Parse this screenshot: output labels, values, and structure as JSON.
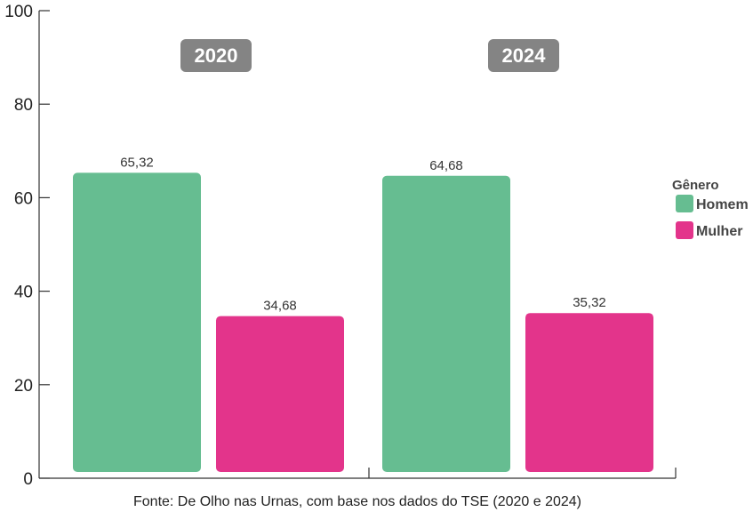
{
  "chart_data": {
    "type": "bar",
    "categories": [
      "2020",
      "2024"
    ],
    "series": [
      {
        "name": "Homem",
        "values": [
          65.32,
          64.68
        ],
        "labels": [
          "65,32",
          "64,68"
        ],
        "color": "#66bd91"
      },
      {
        "name": "Mulher",
        "values": [
          34.68,
          35.32
        ],
        "labels": [
          "34,68",
          "35,32"
        ],
        "color": "#e3348b"
      }
    ],
    "ylim": [
      0,
      100
    ],
    "yticks": [
      0,
      20,
      40,
      60,
      80,
      100
    ],
    "xlabel": "",
    "ylabel": "",
    "legend": {
      "title": "Gênero",
      "placement": "right"
    },
    "grid": false
  },
  "colors": {
    "year_badge": "#848484",
    "axis": "#333333"
  },
  "source": "Fonte: De Olho nas Urnas, com base nos dados do TSE (2020 e 2024)"
}
